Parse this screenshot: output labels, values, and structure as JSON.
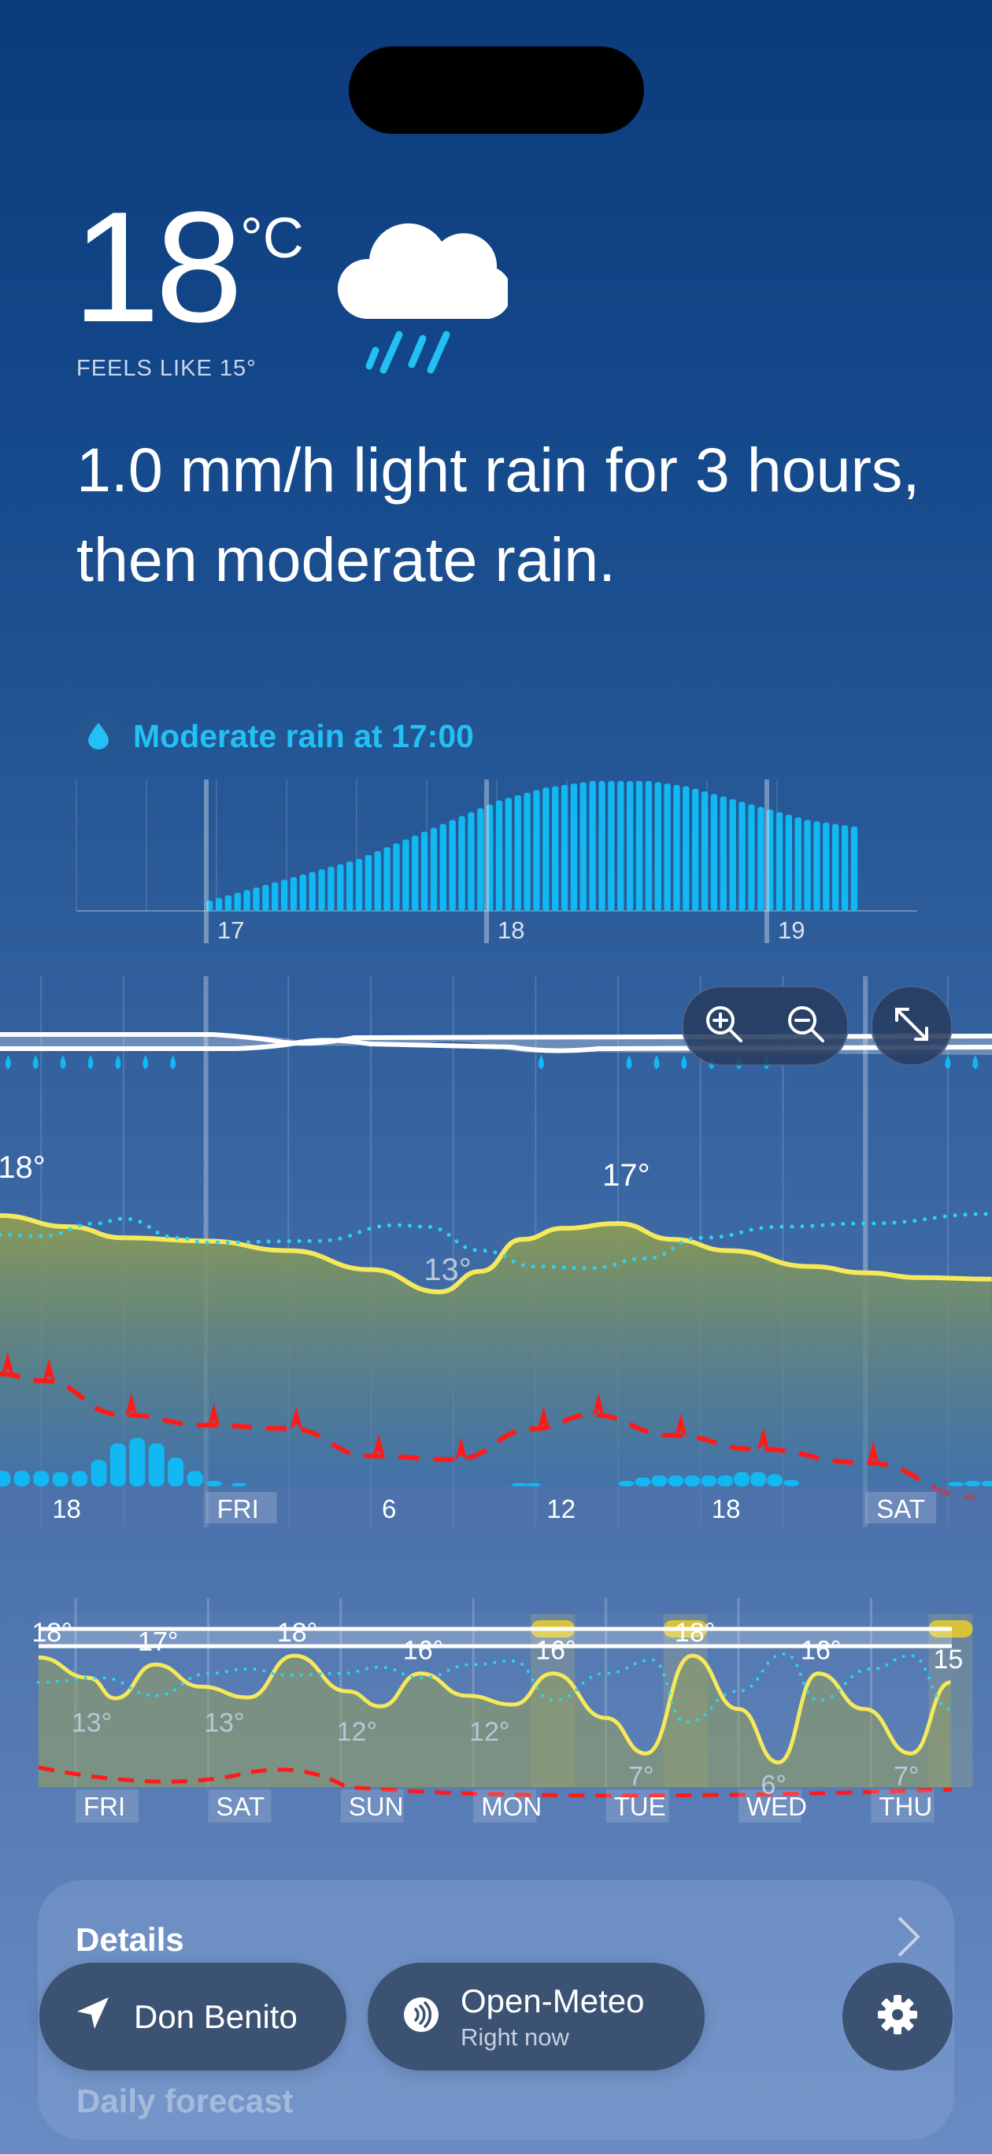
{
  "current": {
    "temperature": "18",
    "unit": "°C",
    "feels_like": "FEELS LIKE 15°",
    "icon": "cloud-rain-icon",
    "summary": "1.0 mm/h light rain for 3 hours, then moderate rain.",
    "next_event": "Moderate rain at 17:00"
  },
  "colors": {
    "accent": "#22c0f3",
    "temperature": "#f5e85a",
    "dewpoint": "#2ad4f0",
    "wind": "#ff1a1a",
    "precip": "#12b8f2"
  },
  "rain_chart": {
    "type": "bar",
    "x_labels": [
      "17",
      "18",
      "19"
    ],
    "values": [
      0.08,
      0.1,
      0.12,
      0.14,
      0.16,
      0.18,
      0.2,
      0.22,
      0.24,
      0.26,
      0.28,
      0.3,
      0.32,
      0.34,
      0.36,
      0.38,
      0.4,
      0.43,
      0.46,
      0.49,
      0.52,
      0.55,
      0.58,
      0.61,
      0.64,
      0.67,
      0.7,
      0.73,
      0.76,
      0.79,
      0.82,
      0.85,
      0.87,
      0.89,
      0.91,
      0.93,
      0.95,
      0.96,
      0.97,
      0.98,
      0.99,
      1.0,
      1.0,
      1.0,
      1.0,
      1.0,
      1.0,
      1.0,
      0.99,
      0.98,
      0.97,
      0.96,
      0.94,
      0.92,
      0.9,
      0.88,
      0.86,
      0.84,
      0.82,
      0.8,
      0.78,
      0.76,
      0.74,
      0.72,
      0.7,
      0.69,
      0.68,
      0.67,
      0.66,
      0.65
    ]
  },
  "chart_data": [
    {
      "type": "line",
      "x_labels": [
        {
          "h": 18,
          "label": "18",
          "day": false
        },
        {
          "h": 24,
          "label": "FRI",
          "day": true
        },
        {
          "h": 30,
          "label": "6",
          "day": false
        },
        {
          "h": 36,
          "label": "12",
          "day": false
        },
        {
          "h": 42,
          "label": "18",
          "day": false
        },
        {
          "h": 48,
          "label": "SAT",
          "day": true
        }
      ],
      "annotations": [
        {
          "h": 17,
          "t": 18,
          "label": "18°"
        },
        {
          "h": 32.5,
          "t": 13.2,
          "label": "13°"
        },
        {
          "h": 39,
          "t": 17.5,
          "label": "17°"
        }
      ],
      "temperature": [
        [
          16.5,
          18
        ],
        [
          19,
          17.3
        ],
        [
          21,
          16.6
        ],
        [
          24,
          16.4
        ],
        [
          27,
          15.8
        ],
        [
          30,
          14.6
        ],
        [
          32.5,
          13.2
        ],
        [
          34,
          14.5
        ],
        [
          35.5,
          16.5
        ],
        [
          37,
          17.2
        ],
        [
          39,
          17.5
        ],
        [
          41,
          16.5
        ],
        [
          43,
          15.8
        ],
        [
          46,
          14.8
        ],
        [
          48,
          14.4
        ],
        [
          50,
          14.1
        ],
        [
          52.6,
          14
        ]
      ],
      "dewpoint": [
        [
          16.5,
          16.8
        ],
        [
          18,
          16.7
        ],
        [
          20,
          17.5
        ],
        [
          21,
          17.8
        ],
        [
          23,
          16.6
        ],
        [
          24,
          16.3
        ],
        [
          28,
          16.4
        ],
        [
          31,
          17.4
        ],
        [
          32,
          17.3
        ],
        [
          34,
          15.8
        ],
        [
          36,
          14.8
        ],
        [
          38,
          14.7
        ],
        [
          40,
          15.3
        ],
        [
          42,
          16.6
        ],
        [
          45,
          17.3
        ],
        [
          48,
          17.5
        ],
        [
          52.6,
          18.1
        ]
      ],
      "wind": [
        [
          16.5,
          20
        ],
        [
          18,
          19
        ],
        [
          21,
          14
        ],
        [
          24,
          12.5
        ],
        [
          27,
          12
        ],
        [
          30,
          8
        ],
        [
          33,
          7.5
        ],
        [
          36,
          12
        ],
        [
          38,
          14
        ],
        [
          41,
          11
        ],
        [
          44,
          9
        ],
        [
          48,
          7
        ],
        [
          52,
          2
        ]
      ],
      "precip": [
        [
          16.6,
          1.4
        ],
        [
          17.3,
          1.4
        ],
        [
          18,
          1.4
        ],
        [
          18.7,
          1.3
        ],
        [
          19.4,
          1.4
        ],
        [
          20.1,
          2.4
        ],
        [
          20.8,
          3.9
        ],
        [
          21.5,
          4.4
        ],
        [
          22.2,
          3.9
        ],
        [
          22.9,
          2.6
        ],
        [
          23.6,
          1.4
        ],
        [
          24.3,
          0.5
        ],
        [
          25.2,
          0.3
        ],
        [
          35.4,
          0.3
        ],
        [
          35.9,
          0.3
        ],
        [
          39.3,
          0.5
        ],
        [
          39.9,
          0.8
        ],
        [
          40.5,
          1.0
        ],
        [
          41.1,
          1.0
        ],
        [
          41.7,
          1.0
        ],
        [
          42.3,
          1.0
        ],
        [
          42.9,
          1.0
        ],
        [
          43.5,
          1.3
        ],
        [
          44.1,
          1.3
        ],
        [
          44.7,
          1.1
        ],
        [
          45.3,
          0.6
        ],
        [
          51.3,
          0.4
        ],
        [
          51.9,
          0.5
        ],
        [
          52.5,
          0.5
        ]
      ],
      "rain_drops_h": [
        16.8,
        17.8,
        18.8,
        19.8,
        20.8,
        21.8,
        22.8,
        36.2,
        39.4,
        40.4,
        41.4,
        42.4,
        43.4,
        44.4,
        51,
        52
      ],
      "gridline_every_hours": 3
    },
    {
      "type": "line",
      "x_labels": [
        "FRI",
        "SAT",
        "SUN",
        "MON",
        "TUE",
        "WED",
        "THU"
      ],
      "temperature": [
        [
          -0.28,
          17.8
        ],
        [
          0.1,
          15.5
        ],
        [
          0.3,
          13.2
        ],
        [
          0.6,
          17
        ],
        [
          0.95,
          14.5
        ],
        [
          1.3,
          13.3
        ],
        [
          1.65,
          18
        ],
        [
          2.05,
          14
        ],
        [
          2.3,
          12.3
        ],
        [
          2.6,
          16
        ],
        [
          2.95,
          13.5
        ],
        [
          3.3,
          12.5
        ],
        [
          3.6,
          16
        ],
        [
          4.0,
          11
        ],
        [
          4.3,
          7
        ],
        [
          4.65,
          18
        ],
        [
          5.0,
          12
        ],
        [
          5.3,
          6
        ],
        [
          5.6,
          16
        ],
        [
          5.95,
          12
        ],
        [
          6.3,
          7
        ],
        [
          6.6,
          15
        ]
      ],
      "labels": [
        {
          "d": -0.2,
          "t": 18,
          "label": "18°",
          "hi": true
        },
        {
          "d": 0.1,
          "t": 13,
          "label": "13°",
          "hi": false
        },
        {
          "d": 0.6,
          "t": 17,
          "label": "17°",
          "hi": true
        },
        {
          "d": 1.1,
          "t": 13,
          "label": "13°",
          "hi": false
        },
        {
          "d": 1.65,
          "t": 18,
          "label": "18°",
          "hi": true
        },
        {
          "d": 2.1,
          "t": 12,
          "label": "12°",
          "hi": false
        },
        {
          "d": 2.6,
          "t": 16,
          "label": "16°",
          "hi": true
        },
        {
          "d": 3.1,
          "t": 12,
          "label": "12°",
          "hi": false
        },
        {
          "d": 3.6,
          "t": 16,
          "label": "16°",
          "hi": true
        },
        {
          "d": 4.3,
          "t": 7,
          "label": "7°",
          "hi": false
        },
        {
          "d": 4.65,
          "t": 18,
          "label": "18°",
          "hi": true
        },
        {
          "d": 5.3,
          "t": 6,
          "label": "6°",
          "hi": false
        },
        {
          "d": 5.6,
          "t": 16,
          "label": "16°",
          "hi": true
        },
        {
          "d": 6.3,
          "t": 7,
          "label": "7°",
          "hi": false
        },
        {
          "d": 6.6,
          "t": 15,
          "label": "15",
          "hi": true
        }
      ],
      "dewpoint": [
        [
          -0.28,
          15
        ],
        [
          0.2,
          15.5
        ],
        [
          0.6,
          13.5
        ],
        [
          1.0,
          16
        ],
        [
          1.3,
          16.5
        ],
        [
          1.6,
          15.8
        ],
        [
          2.0,
          16
        ],
        [
          2.3,
          16.7
        ],
        [
          2.6,
          15.5
        ],
        [
          3.0,
          17
        ],
        [
          3.3,
          17.4
        ],
        [
          3.6,
          13
        ],
        [
          4.0,
          16
        ],
        [
          4.35,
          17.5
        ],
        [
          4.6,
          10.5
        ],
        [
          5.0,
          14
        ],
        [
          5.35,
          18.2
        ],
        [
          5.6,
          13
        ],
        [
          6.0,
          16.5
        ],
        [
          6.3,
          18
        ],
        [
          6.6,
          12
        ]
      ],
      "sun_days": [
        3.6,
        4.6,
        6.6
      ]
    }
  ],
  "buttons": {
    "zoom_in": "zoom-in-icon",
    "zoom_out": "zoom-out-icon",
    "expand": "expand-icon"
  },
  "details": {
    "title": "Details"
  },
  "daily": {
    "title": "Daily forecast"
  },
  "location": {
    "label": "Don Benito"
  },
  "source": {
    "name": "Open-Meteo",
    "time": "Right now"
  }
}
